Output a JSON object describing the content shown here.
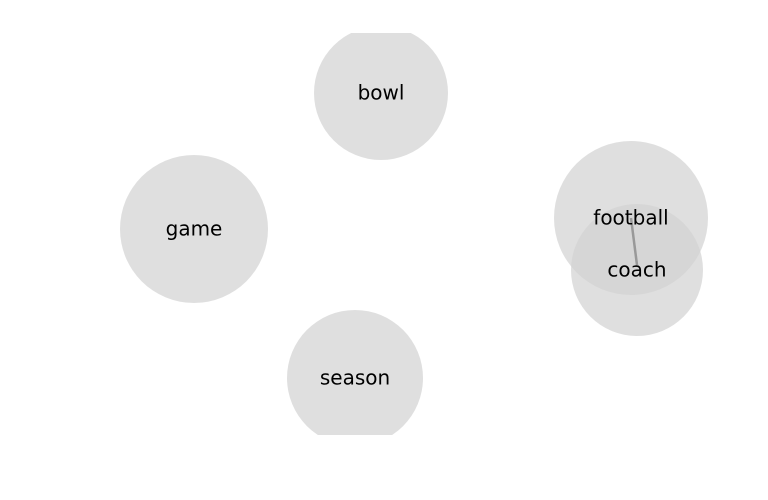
{
  "nodes": [
    {
      "id": "bowl",
      "label": "bowl"
    },
    {
      "id": "game",
      "label": "game"
    },
    {
      "id": "football",
      "label": "football"
    },
    {
      "id": "coach",
      "label": "coach"
    },
    {
      "id": "season",
      "label": "season"
    }
  ],
  "links": [
    {
      "source": "football",
      "target": "coach"
    }
  ],
  "colors": {
    "node_fill": "#d3d3d3",
    "link": "#8a8a8a",
    "label": "#000000",
    "background": "#ffffff"
  }
}
